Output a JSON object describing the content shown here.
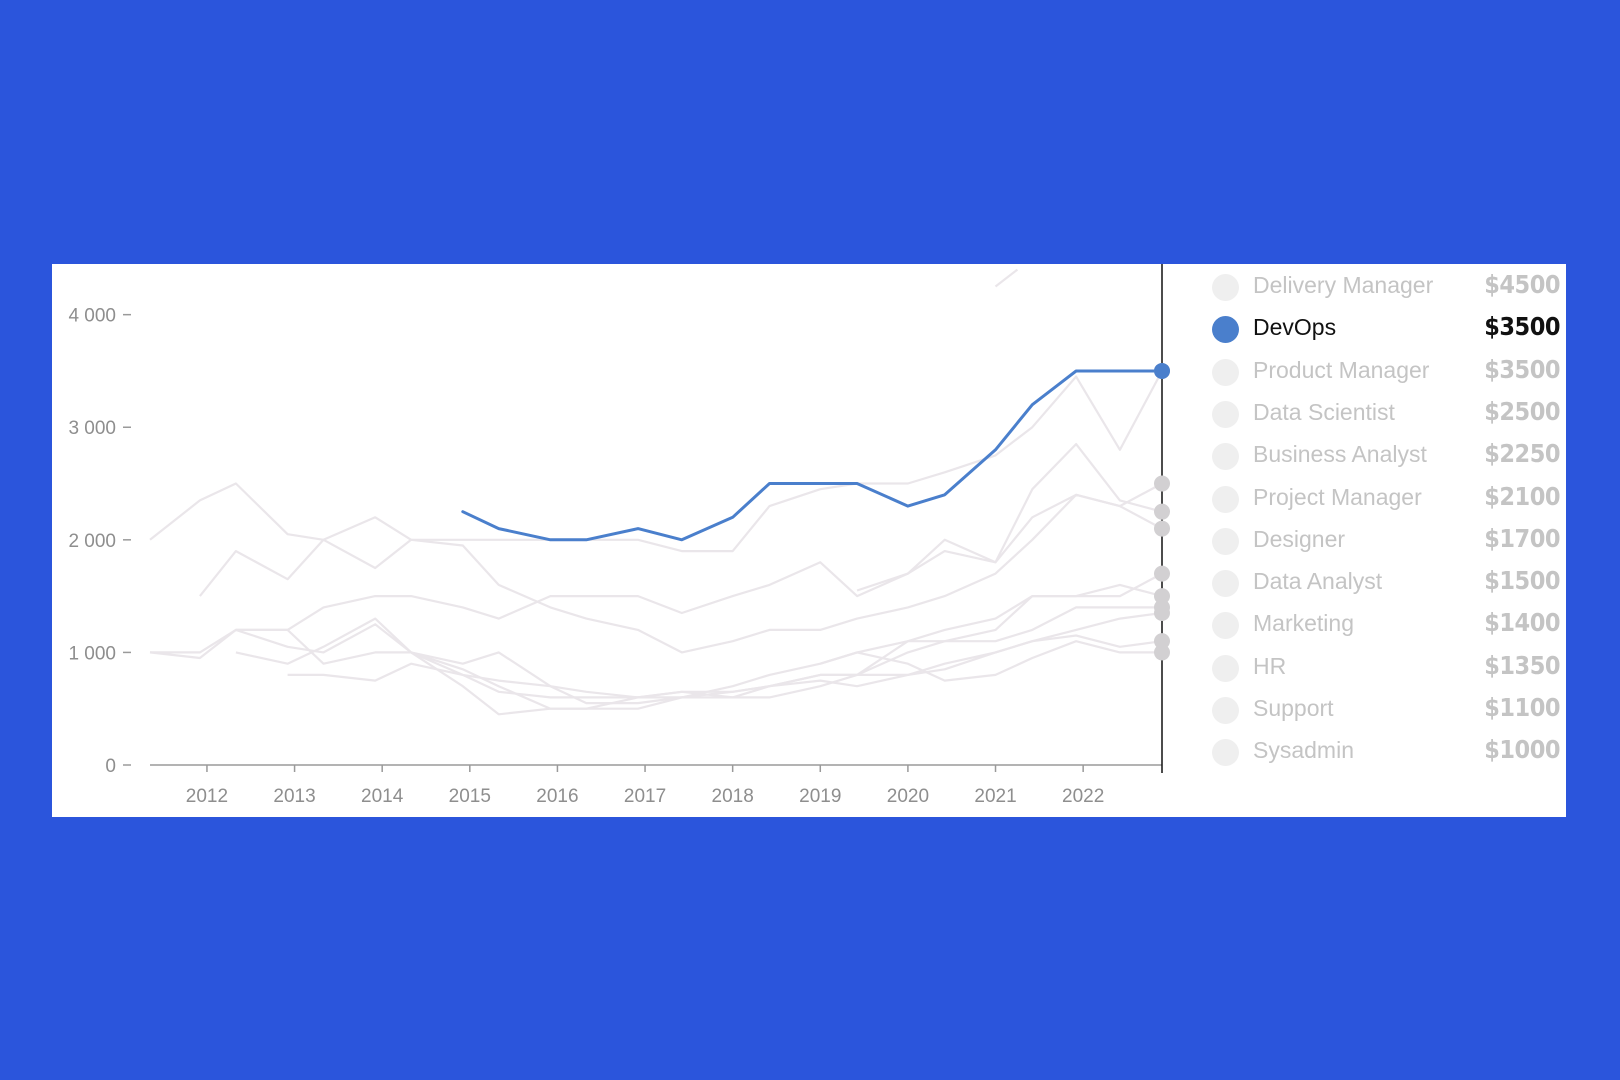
{
  "colors": {
    "background": "#2b55dc",
    "card": "#ffffff",
    "highlight": "#4a7fcc",
    "muted_line": "#eae6ea",
    "muted_dot": "#d2d0d2"
  },
  "chart_data": {
    "type": "line",
    "title": "",
    "xlabel": "",
    "ylabel": "",
    "x_ticks": [
      "2012",
      "2013",
      "2014",
      "2015",
      "2016",
      "2017",
      "2018",
      "2019",
      "2020",
      "2021",
      "2022"
    ],
    "y_ticks": [
      "0",
      "1 000",
      "2 000",
      "3 000",
      "4 000"
    ],
    "xlim": [
      2011.35,
      2022.9
    ],
    "ylim": [
      0,
      4450
    ],
    "grid": false,
    "legend_position": "right",
    "highlighted_series": "DevOps",
    "legend": [
      {
        "name": "Delivery Manager",
        "value": "$4500"
      },
      {
        "name": "DevOps",
        "value": "$3500"
      },
      {
        "name": "Product Manager",
        "value": "$3500"
      },
      {
        "name": "Data Scientist",
        "value": "$2500"
      },
      {
        "name": "Business Analyst",
        "value": "$2250"
      },
      {
        "name": "Project Manager",
        "value": "$2100"
      },
      {
        "name": "Designer",
        "value": "$1700"
      },
      {
        "name": "Data Analyst",
        "value": "$1500"
      },
      {
        "name": "Marketing",
        "value": "$1400"
      },
      {
        "name": "HR",
        "value": "$1350"
      },
      {
        "name": "Support",
        "value": "$1100"
      },
      {
        "name": "Sysadmin",
        "value": "$1000"
      }
    ],
    "series": [
      {
        "name": "DevOps",
        "highlighted": true,
        "x": [
          2014.92,
          2015.33,
          2015.92,
          2016.33,
          2016.92,
          2017.42,
          2018.0,
          2018.42,
          2019.0,
          2019.42,
          2020.0,
          2020.42,
          2021.0,
          2021.42,
          2021.92,
          2022.42,
          2022.9
        ],
        "y": [
          2250,
          2100,
          2000,
          2000,
          2100,
          2000,
          2200,
          2500,
          2500,
          2500,
          2300,
          2400,
          2800,
          3200,
          3500,
          3500,
          3500
        ]
      },
      {
        "name": "Delivery Manager",
        "x": [
          2021.0,
          2021.25
        ],
        "y": [
          4250,
          4400
        ]
      },
      {
        "name": "Product Manager",
        "x": [
          2011.35,
          2011.92,
          2012.33,
          2012.92,
          2013.33,
          2013.92,
          2014.33,
          2014.92,
          2015.33,
          2015.92,
          2016.33,
          2016.92,
          2017.42,
          2018.0,
          2018.42,
          2019.0,
          2019.42,
          2020.0,
          2020.42,
          2021.0,
          2021.42,
          2021.92,
          2022.42,
          2022.9
        ],
        "y": [
          2000,
          2350,
          2500,
          2050,
          2000,
          1750,
          2000,
          2000,
          2000,
          2000,
          2000,
          2000,
          1900,
          1900,
          2300,
          2450,
          2500,
          2500,
          2600,
          2750,
          3000,
          3450,
          2800,
          3500
        ]
      },
      {
        "name": "Data Scientist",
        "x": [
          2011.92,
          2012.33,
          2012.92,
          2013.33,
          2013.92,
          2014.33,
          2014.92,
          2015.33,
          2015.92,
          2016.33,
          2016.92,
          2017.42,
          2018.0,
          2018.42,
          2019.0,
          2019.42,
          2020.0,
          2020.42,
          2021.0,
          2021.42,
          2021.92,
          2022.42,
          2022.9
        ],
        "y": [
          1500,
          1900,
          1650,
          2000,
          2200,
          2000,
          1950,
          1600,
          1400,
          1300,
          1200,
          1000,
          1100,
          1200,
          1200,
          1300,
          1400,
          1500,
          1700,
          2000,
          2400,
          2300,
          2500
        ]
      },
      {
        "name": "Business Analyst",
        "x": [
          2019.42,
          2020.0,
          2020.42,
          2021.0,
          2021.42,
          2021.92,
          2022.42,
          2022.9
        ],
        "y": [
          1550,
          1700,
          1900,
          1800,
          2450,
          2850,
          2350,
          2250
        ]
      },
      {
        "name": "Project Manager",
        "x": [
          2011.35,
          2011.92,
          2012.33,
          2012.92,
          2013.33,
          2013.92,
          2014.33,
          2014.92,
          2015.33,
          2015.92,
          2016.33,
          2016.92,
          2017.42,
          2018.0,
          2018.42,
          2019.0,
          2019.42,
          2020.0,
          2020.42,
          2021.0,
          2021.42,
          2021.92,
          2022.42,
          2022.9
        ],
        "y": [
          1000,
          1000,
          1200,
          1200,
          1400,
          1500,
          1500,
          1400,
          1300,
          1500,
          1500,
          1500,
          1350,
          1500,
          1600,
          1800,
          1500,
          1700,
          2000,
          1800,
          2200,
          2400,
          2300,
          2100
        ]
      },
      {
        "name": "Designer",
        "x": [
          2012.33,
          2012.92,
          2013.33,
          2013.92,
          2014.33,
          2014.92,
          2015.33,
          2015.92,
          2016.33,
          2016.92,
          2017.42,
          2018.0,
          2018.42,
          2019.0,
          2019.42,
          2020.0,
          2020.42,
          2021.0,
          2021.42,
          2021.92,
          2022.42,
          2022.9
        ],
        "y": [
          1000,
          900,
          1050,
          1300,
          1000,
          900,
          1000,
          700,
          650,
          600,
          650,
          600,
          700,
          800,
          800,
          1000,
          1100,
          1200,
          1500,
          1500,
          1500,
          1700
        ]
      },
      {
        "name": "Data Analyst",
        "x": [
          2012.33,
          2012.92,
          2013.33,
          2013.92,
          2014.33,
          2014.92,
          2015.33,
          2015.92,
          2016.33,
          2016.92,
          2017.42,
          2018.0,
          2018.42,
          2019.0,
          2019.42,
          2020.0,
          2020.42,
          2021.0,
          2021.42,
          2021.92,
          2022.42,
          2022.9
        ],
        "y": [
          1200,
          1200,
          900,
          1000,
          1000,
          850,
          700,
          500,
          500,
          500,
          600,
          700,
          800,
          900,
          1000,
          1100,
          1200,
          1300,
          1500,
          1500,
          1600,
          1500
        ]
      },
      {
        "name": "Marketing",
        "x": [
          2011.35,
          2011.92,
          2012.33,
          2012.92,
          2013.33,
          2013.92,
          2014.33,
          2014.92,
          2015.33,
          2015.92,
          2016.33,
          2016.92,
          2017.42,
          2018.0,
          2018.42,
          2019.0,
          2019.42,
          2020.0,
          2020.42,
          2021.0,
          2021.42,
          2021.92,
          2022.42,
          2022.9
        ],
        "y": [
          1000,
          950,
          1200,
          1050,
          1000,
          1250,
          1000,
          800,
          650,
          600,
          600,
          600,
          600,
          650,
          700,
          800,
          800,
          1100,
          1100,
          1100,
          1200,
          1400,
          1400,
          1400
        ]
      },
      {
        "name": "HR",
        "x": [
          2012.92,
          2013.33,
          2013.92,
          2014.33,
          2014.92,
          2015.33,
          2015.92,
          2016.33,
          2016.92,
          2017.42,
          2018.0,
          2018.42,
          2019.0,
          2019.42,
          2020.0,
          2020.42,
          2021.0,
          2021.42,
          2021.92,
          2022.42,
          2022.9
        ],
        "y": [
          800,
          800,
          750,
          900,
          800,
          750,
          700,
          550,
          550,
          600,
          600,
          600,
          700,
          800,
          800,
          850,
          1000,
          1100,
          1200,
          1300,
          1350
        ]
      },
      {
        "name": "Support",
        "x": [
          2014.33,
          2014.92,
          2015.33,
          2015.92,
          2016.33,
          2016.92,
          2017.42,
          2018.0,
          2018.42,
          2019.0,
          2019.42,
          2020.0,
          2020.42,
          2021.0,
          2021.42,
          2021.92,
          2022.42,
          2022.9
        ],
        "y": [
          1000,
          700,
          450,
          500,
          500,
          600,
          650,
          650,
          700,
          750,
          700,
          800,
          900,
          1000,
          1100,
          1150,
          1050,
          1100
        ]
      },
      {
        "name": "Sysadmin",
        "x": [
          2019.0,
          2019.42,
          2020.0,
          2020.42,
          2021.0,
          2021.42,
          2021.92,
          2022.42,
          2022.9
        ],
        "y": [
          900,
          1000,
          900,
          750,
          800,
          950,
          1100,
          1000,
          1000
        ]
      }
    ]
  }
}
